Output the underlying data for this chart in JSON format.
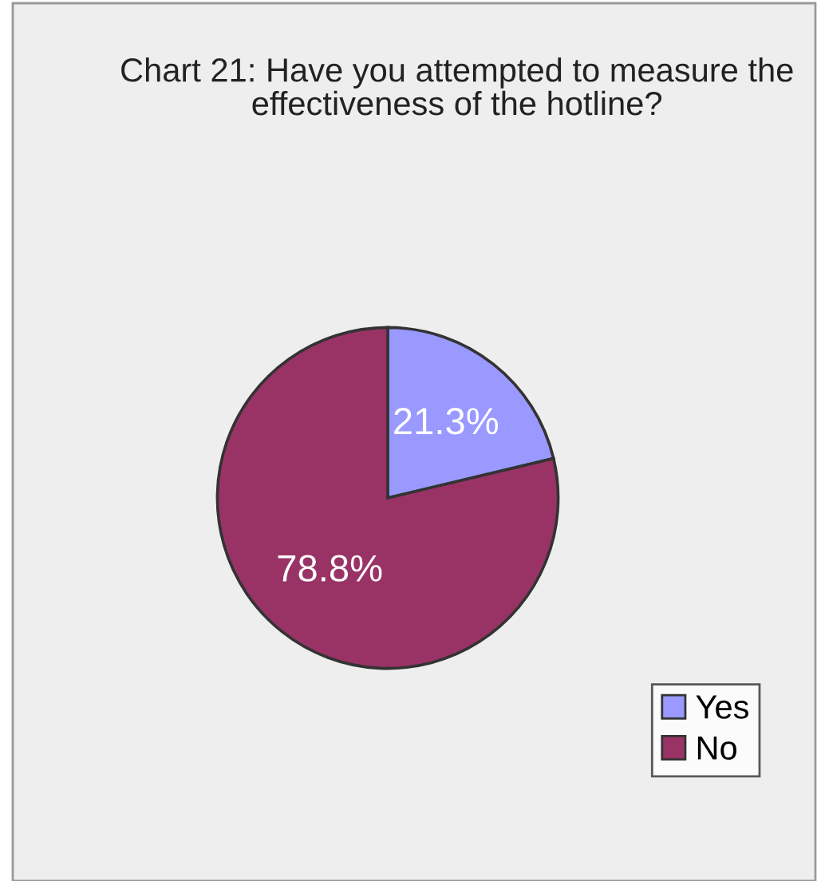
{
  "chart_data": {
    "type": "pie",
    "title": "Chart 21: Have you attempted to measure the effectiveness of the hotline?",
    "categories": [
      "Yes",
      "No"
    ],
    "values": [
      21.3,
      78.8
    ],
    "colors": [
      "#9999ff",
      "#993366"
    ],
    "value_labels": [
      "21.3%",
      "78.8%"
    ],
    "legend": "bottom right"
  }
}
